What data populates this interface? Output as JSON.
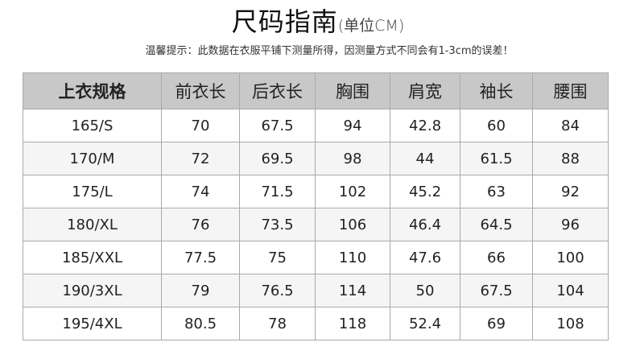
{
  "title": {
    "main": "尺码指南",
    "unit": "(单位CM)"
  },
  "tip": "温馨提示：此数据在衣服平铺下测量所得，因测量方式不同会有1-3cm的误差！",
  "table": {
    "headers": [
      "上衣规格",
      "前衣长",
      "后衣长",
      "胸围",
      "肩宽",
      "袖长",
      "腰围"
    ],
    "rows": [
      [
        "165/S",
        "70",
        "67.5",
        "94",
        "42.8",
        "60",
        "84"
      ],
      [
        "170/M",
        "72",
        "69.5",
        "98",
        "44",
        "61.5",
        "88"
      ],
      [
        "175/L",
        "74",
        "71.5",
        "102",
        "45.2",
        "63",
        "92"
      ],
      [
        "180/XL",
        "76",
        "73.5",
        "106",
        "46.4",
        "64.5",
        "96"
      ],
      [
        "185/XXL",
        "77.5",
        "75",
        "110",
        "47.6",
        "66",
        "100"
      ],
      [
        "190/3XL",
        "79",
        "76.5",
        "114",
        "50",
        "67.5",
        "104"
      ],
      [
        "195/4XL",
        "80.5",
        "78",
        "118",
        "52.4",
        "69",
        "108"
      ]
    ]
  }
}
